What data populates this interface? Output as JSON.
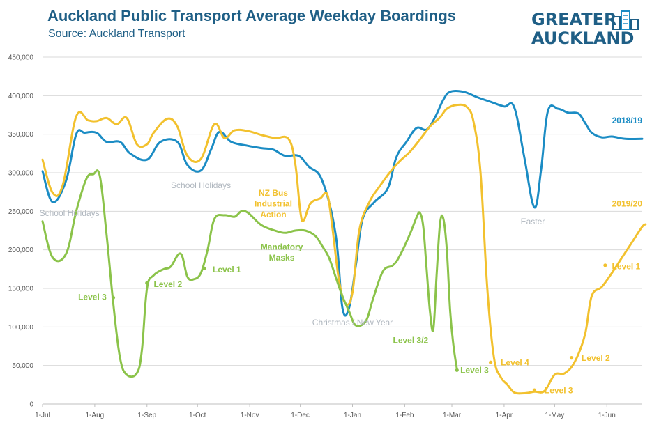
{
  "header": {
    "title": "Auckland Public Transport Average Weekday Boardings",
    "subtitle": "Source: Auckland Transport"
  },
  "logo": {
    "line1": "GREATER",
    "line2": "AUCKLAND",
    "icon": "building-icon"
  },
  "colors": {
    "blue": "#1b8cc4",
    "yellow": "#f2c12e",
    "green": "#8bc34a",
    "gray": "#b0b7bf",
    "title": "#1f5f86",
    "grid": "#d9d9d9"
  },
  "chart_data": {
    "type": "line",
    "x_axis": {
      "ticks": [
        "1-Jul",
        "1-Aug",
        "1-Sep",
        "1-Oct",
        "1-Nov",
        "1-Dec",
        "1-Jan",
        "1-Feb",
        "1-Mar",
        "1-Apr",
        "1-May",
        "1-Jun"
      ],
      "tick_days": [
        0,
        31,
        62,
        92,
        123,
        153,
        184,
        215,
        243,
        274,
        304,
        335
      ],
      "range": [
        "1-Jul",
        "30-Jun"
      ]
    },
    "y_axis": {
      "ticks": [
        "0",
        "50,000",
        "100,000",
        "150,000",
        "200,000",
        "250,000",
        "300,000",
        "350,000",
        "400,000",
        "450,000"
      ],
      "ylim": [
        0,
        450000
      ]
    },
    "grid": "horizontal",
    "series": [
      {
        "name": "2018/19",
        "color": "#1b8cc4",
        "points": [
          [
            0,
            302000
          ],
          [
            6,
            262000
          ],
          [
            14,
            290000
          ],
          [
            20,
            350000
          ],
          [
            25,
            352000
          ],
          [
            32,
            352000
          ],
          [
            38,
            340000
          ],
          [
            46,
            340000
          ],
          [
            52,
            325000
          ],
          [
            62,
            317000
          ],
          [
            70,
            340000
          ],
          [
            80,
            340000
          ],
          [
            86,
            310000
          ],
          [
            94,
            303000
          ],
          [
            100,
            330000
          ],
          [
            105,
            353000
          ],
          [
            112,
            340000
          ],
          [
            122,
            335000
          ],
          [
            130,
            332000
          ],
          [
            137,
            330000
          ],
          [
            144,
            322000
          ],
          [
            152,
            322000
          ],
          [
            158,
            308000
          ],
          [
            166,
            290000
          ],
          [
            174,
            220000
          ],
          [
            178,
            125000
          ],
          [
            182,
            125000
          ],
          [
            186,
            180000
          ],
          [
            190,
            240000
          ],
          [
            197,
            262000
          ],
          [
            205,
            280000
          ],
          [
            210,
            320000
          ],
          [
            216,
            340000
          ],
          [
            222,
            358000
          ],
          [
            228,
            356000
          ],
          [
            233,
            372000
          ],
          [
            238,
            395000
          ],
          [
            242,
            405000
          ],
          [
            250,
            405000
          ],
          [
            258,
            398000
          ],
          [
            266,
            392000
          ],
          [
            274,
            386000
          ],
          [
            280,
            385000
          ],
          [
            286,
            320000
          ],
          [
            292,
            255000
          ],
          [
            296,
            305000
          ],
          [
            300,
            380000
          ],
          [
            306,
            383000
          ],
          [
            312,
            378000
          ],
          [
            318,
            377000
          ],
          [
            322,
            365000
          ],
          [
            326,
            352000
          ],
          [
            332,
            346000
          ],
          [
            338,
            347000
          ],
          [
            346,
            344000
          ],
          [
            356,
            344000
          ]
        ]
      },
      {
        "name": "2019/20",
        "color": "#f2c12e",
        "points": [
          [
            0,
            317000
          ],
          [
            6,
            274000
          ],
          [
            12,
            284000
          ],
          [
            20,
            373000
          ],
          [
            27,
            368000
          ],
          [
            32,
            367000
          ],
          [
            38,
            371000
          ],
          [
            44,
            363000
          ],
          [
            50,
            371000
          ],
          [
            56,
            337000
          ],
          [
            62,
            337000
          ],
          [
            66,
            352000
          ],
          [
            74,
            370000
          ],
          [
            80,
            360000
          ],
          [
            86,
            322000
          ],
          [
            94,
            318000
          ],
          [
            102,
            363000
          ],
          [
            108,
            345000
          ],
          [
            114,
            355000
          ],
          [
            122,
            354000
          ],
          [
            130,
            349000
          ],
          [
            138,
            345000
          ],
          [
            146,
            344000
          ],
          [
            150,
            312000
          ],
          [
            153,
            250000
          ],
          [
            155,
            238000
          ],
          [
            159,
            260000
          ],
          [
            165,
            267000
          ],
          [
            169,
            272000
          ],
          [
            172,
            230000
          ],
          [
            176,
            160000
          ],
          [
            180,
            130000
          ],
          [
            184,
            145000
          ],
          [
            188,
            225000
          ],
          [
            194,
            262000
          ],
          [
            200,
            282000
          ],
          [
            206,
            300000
          ],
          [
            212,
            315000
          ],
          [
            218,
            327000
          ],
          [
            224,
            343000
          ],
          [
            230,
            360000
          ],
          [
            236,
            372000
          ],
          [
            240,
            383000
          ],
          [
            246,
            388000
          ],
          [
            252,
            385000
          ],
          [
            256,
            365000
          ],
          [
            260,
            300000
          ],
          [
            264,
            150000
          ],
          [
            268,
            60000
          ],
          [
            272,
            35000
          ],
          [
            276,
            25000
          ],
          [
            280,
            15000
          ],
          [
            286,
            14000
          ],
          [
            292,
            16000
          ],
          [
            298,
            17000
          ],
          [
            304,
            38000
          ],
          [
            310,
            40000
          ],
          [
            316,
            55000
          ],
          [
            322,
            90000
          ],
          [
            326,
            140000
          ],
          [
            332,
            152000
          ],
          [
            338,
            170000
          ],
          [
            344,
            190000
          ],
          [
            350,
            210000
          ],
          [
            356,
            230000
          ],
          [
            358,
            233000
          ]
        ]
      },
      {
        "name": "",
        "color": "#8bc34a",
        "points": [
          [
            0,
            237000
          ],
          [
            6,
            190000
          ],
          [
            14,
            195000
          ],
          [
            20,
            250000
          ],
          [
            26,
            292000
          ],
          [
            30,
            298000
          ],
          [
            34,
            296000
          ],
          [
            38,
            220000
          ],
          [
            42,
            130000
          ],
          [
            46,
            60000
          ],
          [
            50,
            38000
          ],
          [
            56,
            40000
          ],
          [
            59,
            70000
          ],
          [
            62,
            150000
          ],
          [
            66,
            167000
          ],
          [
            72,
            175000
          ],
          [
            76,
            178000
          ],
          [
            82,
            195000
          ],
          [
            86,
            165000
          ],
          [
            90,
            162000
          ],
          [
            94,
            170000
          ],
          [
            98,
            200000
          ],
          [
            102,
            240000
          ],
          [
            108,
            245000
          ],
          [
            114,
            243000
          ],
          [
            118,
            250000
          ],
          [
            122,
            248000
          ],
          [
            130,
            232000
          ],
          [
            138,
            225000
          ],
          [
            144,
            222000
          ],
          [
            150,
            225000
          ],
          [
            156,
            225000
          ],
          [
            162,
            218000
          ],
          [
            166,
            205000
          ],
          [
            170,
            190000
          ],
          [
            174,
            165000
          ],
          [
            178,
            140000
          ],
          [
            182,
            120000
          ],
          [
            186,
            102000
          ],
          [
            192,
            108000
          ],
          [
            196,
            135000
          ],
          [
            202,
            172000
          ],
          [
            208,
            180000
          ],
          [
            212,
            192000
          ],
          [
            218,
            220000
          ],
          [
            222,
            242000
          ],
          [
            224,
            248000
          ],
          [
            226,
            230000
          ],
          [
            228,
            175000
          ],
          [
            230,
            120000
          ],
          [
            232,
            97000
          ],
          [
            234,
            170000
          ],
          [
            236,
            235000
          ],
          [
            238,
            240000
          ],
          [
            240,
            200000
          ],
          [
            242,
            120000
          ],
          [
            244,
            75000
          ],
          [
            246,
            45000
          ]
        ]
      }
    ],
    "annotations": [
      {
        "text": "2018/19",
        "color": "#1b8cc4",
        "bold": true,
        "x": 356,
        "y": 364000,
        "anchor": "end"
      },
      {
        "text": "2019/20",
        "color": "#f2c12e",
        "bold": true,
        "x": 356,
        "y": 256000,
        "anchor": "end"
      },
      {
        "text": "School Holidays",
        "color": "#b0b7bf",
        "bold": false,
        "x": 16,
        "y": 244000,
        "anchor": "middle"
      },
      {
        "text": "School Holidays",
        "color": "#b0b7bf",
        "bold": false,
        "x": 94,
        "y": 280000,
        "anchor": "middle"
      },
      {
        "text": "Christmas / New Year",
        "color": "#b0b7bf",
        "bold": false,
        "x": 184,
        "y": 102000,
        "anchor": "middle"
      },
      {
        "text": "Easter",
        "color": "#b0b7bf",
        "bold": false,
        "x": 291,
        "y": 233000,
        "anchor": "middle"
      },
      {
        "text": "Mandatory",
        "color": "#8bc34a",
        "bold": true,
        "x": 142,
        "y": 200000,
        "anchor": "middle"
      },
      {
        "text": "Masks",
        "color": "#8bc34a",
        "bold": true,
        "x": 142,
        "y": 186000,
        "anchor": "middle"
      },
      {
        "text": "NZ Bus",
        "color": "#f2c12e",
        "bold": true,
        "x": 137,
        "y": 270000,
        "anchor": "middle"
      },
      {
        "text": "Industrial",
        "color": "#f2c12e",
        "bold": true,
        "x": 137,
        "y": 256000,
        "anchor": "middle"
      },
      {
        "text": "Action",
        "color": "#f2c12e",
        "bold": true,
        "x": 137,
        "y": 242000,
        "anchor": "middle"
      },
      {
        "text": "Level 3",
        "color": "#8bc34a",
        "bold": true,
        "x": 38,
        "y": 135000,
        "anchor": "end",
        "marker": [
          42,
          138000
        ]
      },
      {
        "text": "Level 2",
        "color": "#8bc34a",
        "bold": true,
        "x": 66,
        "y": 152000,
        "anchor": "start",
        "marker": [
          62,
          157000
        ]
      },
      {
        "text": "Level 1",
        "color": "#8bc34a",
        "bold": true,
        "x": 101,
        "y": 171000,
        "anchor": "start",
        "marker": [
          96,
          176000
        ]
      },
      {
        "text": "Level 3/2",
        "color": "#8bc34a",
        "bold": true,
        "x": 229,
        "y": 79000,
        "anchor": "end"
      },
      {
        "text": "Level 3",
        "color": "#8bc34a",
        "bold": true,
        "x": 248,
        "y": 40000,
        "anchor": "start",
        "marker": [
          246,
          44000
        ]
      },
      {
        "text": "Level 4",
        "color": "#f2c12e",
        "bold": true,
        "x": 272,
        "y": 50000,
        "anchor": "start",
        "marker": [
          266,
          54000
        ]
      },
      {
        "text": "Level 3",
        "color": "#f2c12e",
        "bold": true,
        "x": 298,
        "y": 14000,
        "anchor": "start",
        "marker": [
          292,
          18000
        ]
      },
      {
        "text": "Level 2",
        "color": "#f2c12e",
        "bold": true,
        "x": 320,
        "y": 56000,
        "anchor": "start",
        "marker": [
          314,
          60000
        ]
      },
      {
        "text": "Level 1",
        "color": "#f2c12e",
        "bold": true,
        "x": 338,
        "y": 175000,
        "anchor": "start",
        "marker": [
          334,
          180000
        ]
      }
    ]
  }
}
